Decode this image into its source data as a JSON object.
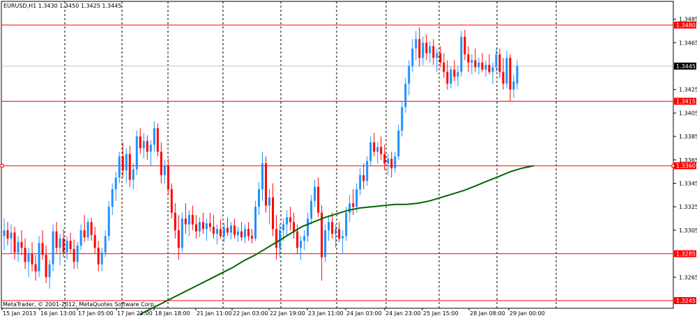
{
  "window": {
    "symbol_title": "EURUSD,H1  1.3430  1.3450  1.3425  1.3445",
    "copyright": "MetaTrader, © 2001-2012, MetaQuotes Software Corp."
  },
  "colors": {
    "background": "#ffffff",
    "bull_candle": "#1e90ff",
    "bear_candle": "#ff0000",
    "moving_average": "#006400",
    "level_line": "#ff0000",
    "current_price_line": "#c0c0c0",
    "grid": "#000000"
  },
  "price_axis": {
    "ticks": [
      "1.3485",
      "1.3465",
      "1.3425",
      "1.3405",
      "1.3385",
      "1.3365",
      "1.3345",
      "1.3325",
      "1.3305",
      "1.3265"
    ]
  },
  "time_axis": {
    "labels": [
      "15 Jan 2013",
      "16 Jan 13:00",
      "17 Jan 05:00",
      "17 Jan 21:00",
      "18 Jan 18:00",
      "21 Jan 11:00",
      "22 Jan 03:00",
      "22 Jan 19:00",
      "23 Jan 11:00",
      "24 Jan 03:00",
      "24 Jan 23:00",
      "25 Jan 15:00",
      "28 Jan 08:00",
      "29 Jan 00:00"
    ]
  },
  "levels": [
    {
      "price": 1.348,
      "label": "1.3480"
    },
    {
      "price": 1.3415,
      "label": "1.3415"
    },
    {
      "price": 1.336,
      "label": "1.3360"
    },
    {
      "price": 1.3285,
      "label": "1.3285"
    },
    {
      "price": 1.3245,
      "label": "1.3245"
    }
  ],
  "current_price": {
    "price": 1.3445,
    "label": "1.3445"
  },
  "chart_data": {
    "type": "candlestick",
    "symbol": "EURUSD",
    "timeframe": "H1",
    "ylim": [
      1.3245,
      1.3492
    ],
    "candles": [
      [
        1.33,
        1.3315,
        1.3288,
        1.3305
      ],
      [
        1.3305,
        1.3312,
        1.3292,
        1.3298
      ],
      [
        1.3298,
        1.331,
        1.3285,
        1.3303
      ],
      [
        1.3303,
        1.3308,
        1.328,
        1.3286
      ],
      [
        1.3286,
        1.33,
        1.3278,
        1.3295
      ],
      [
        1.3295,
        1.3305,
        1.3284,
        1.329
      ],
      [
        1.329,
        1.3298,
        1.3272,
        1.3278
      ],
      [
        1.3278,
        1.329,
        1.3265,
        1.3285
      ],
      [
        1.3285,
        1.3295,
        1.327,
        1.3276
      ],
      [
        1.3276,
        1.3284,
        1.3262,
        1.327
      ],
      [
        1.327,
        1.33,
        1.3265,
        1.3294
      ],
      [
        1.3294,
        1.3305,
        1.328,
        1.3284
      ],
      [
        1.3284,
        1.3292,
        1.326,
        1.3265
      ],
      [
        1.3265,
        1.328,
        1.3255,
        1.3276
      ],
      [
        1.3276,
        1.331,
        1.327,
        1.3304
      ],
      [
        1.3304,
        1.3312,
        1.3285,
        1.329
      ],
      [
        1.329,
        1.3302,
        1.3275,
        1.3298
      ],
      [
        1.3298,
        1.3306,
        1.3282,
        1.3286
      ],
      [
        1.3286,
        1.33,
        1.328,
        1.3296
      ],
      [
        1.3296,
        1.3303,
        1.3285,
        1.3289
      ],
      [
        1.3289,
        1.3297,
        1.3272,
        1.3278
      ],
      [
        1.3278,
        1.3295,
        1.3272,
        1.3292
      ],
      [
        1.3292,
        1.331,
        1.3288,
        1.3305
      ],
      [
        1.3305,
        1.3318,
        1.3295,
        1.3299
      ],
      [
        1.3299,
        1.3315,
        1.3296,
        1.3312
      ],
      [
        1.3312,
        1.3316,
        1.3296,
        1.3301
      ],
      [
        1.3301,
        1.3308,
        1.3285,
        1.329
      ],
      [
        1.329,
        1.3296,
        1.327,
        1.3276
      ],
      [
        1.3276,
        1.329,
        1.327,
        1.3286
      ],
      [
        1.3286,
        1.3305,
        1.3282,
        1.33
      ],
      [
        1.33,
        1.333,
        1.3296,
        1.3325
      ],
      [
        1.3325,
        1.3345,
        1.3318,
        1.334
      ],
      [
        1.334,
        1.3355,
        1.333,
        1.335
      ],
      [
        1.335,
        1.3372,
        1.3345,
        1.3368
      ],
      [
        1.3368,
        1.338,
        1.335,
        1.3356
      ],
      [
        1.3356,
        1.3375,
        1.3345,
        1.337
      ],
      [
        1.337,
        1.3377,
        1.3342,
        1.3348
      ],
      [
        1.3348,
        1.3362,
        1.334,
        1.3357
      ],
      [
        1.3357,
        1.339,
        1.3352,
        1.3385
      ],
      [
        1.3385,
        1.3392,
        1.337,
        1.3375
      ],
      [
        1.3375,
        1.3388,
        1.3366,
        1.3381
      ],
      [
        1.3381,
        1.3386,
        1.3365,
        1.3372
      ],
      [
        1.3372,
        1.3382,
        1.336,
        1.3378
      ],
      [
        1.3378,
        1.3398,
        1.3372,
        1.3392
      ],
      [
        1.3392,
        1.3396,
        1.3368,
        1.3372
      ],
      [
        1.3372,
        1.338,
        1.3345,
        1.3352
      ],
      [
        1.3352,
        1.3365,
        1.3345,
        1.336
      ],
      [
        1.336,
        1.3366,
        1.3335,
        1.334
      ],
      [
        1.334,
        1.3345,
        1.3315,
        1.332
      ],
      [
        1.332,
        1.3328,
        1.3298,
        1.3305
      ],
      [
        1.3305,
        1.3318,
        1.328,
        1.329
      ],
      [
        1.329,
        1.332,
        1.3286,
        1.3315
      ],
      [
        1.3315,
        1.3328,
        1.3302,
        1.331
      ],
      [
        1.331,
        1.3322,
        1.33,
        1.3318
      ],
      [
        1.3318,
        1.3326,
        1.3305,
        1.331
      ],
      [
        1.331,
        1.3318,
        1.3298,
        1.3304
      ],
      [
        1.3304,
        1.3316,
        1.3299,
        1.3312
      ],
      [
        1.3312,
        1.332,
        1.3302,
        1.3306
      ],
      [
        1.3306,
        1.3315,
        1.3296,
        1.3311
      ],
      [
        1.3311,
        1.332,
        1.3304,
        1.3308
      ],
      [
        1.3308,
        1.3318,
        1.3298,
        1.3302
      ],
      [
        1.3302,
        1.331,
        1.3293,
        1.3306
      ],
      [
        1.3306,
        1.3314,
        1.3298,
        1.33
      ],
      [
        1.33,
        1.3311,
        1.3295,
        1.3307
      ],
      [
        1.3307,
        1.3316,
        1.33,
        1.3303
      ],
      [
        1.3303,
        1.3312,
        1.3297,
        1.3309
      ],
      [
        1.3309,
        1.3315,
        1.3298,
        1.3301
      ],
      [
        1.3301,
        1.3308,
        1.3295,
        1.3304
      ],
      [
        1.3304,
        1.3312,
        1.3296,
        1.3299
      ],
      [
        1.3299,
        1.331,
        1.3294,
        1.3306
      ],
      [
        1.3306,
        1.3312,
        1.3296,
        1.33
      ],
      [
        1.33,
        1.3306,
        1.3294,
        1.3298
      ],
      [
        1.3298,
        1.333,
        1.3296,
        1.3325
      ],
      [
        1.3325,
        1.3346,
        1.3318,
        1.334
      ],
      [
        1.334,
        1.3372,
        1.333,
        1.3362
      ],
      [
        1.3362,
        1.3368,
        1.332,
        1.3326
      ],
      [
        1.3326,
        1.334,
        1.331,
        1.3333
      ],
      [
        1.3333,
        1.3345,
        1.33,
        1.3306
      ],
      [
        1.3306,
        1.3318,
        1.328,
        1.329
      ],
      [
        1.329,
        1.331,
        1.3282,
        1.3305
      ],
      [
        1.3305,
        1.3315,
        1.3296,
        1.331
      ],
      [
        1.331,
        1.3322,
        1.33,
        1.3316
      ],
      [
        1.3316,
        1.3325,
        1.3305,
        1.3312
      ],
      [
        1.3312,
        1.332,
        1.3298,
        1.3304
      ],
      [
        1.3304,
        1.331,
        1.3285,
        1.329
      ],
      [
        1.329,
        1.33,
        1.328,
        1.3296
      ],
      [
        1.3296,
        1.3305,
        1.3288,
        1.33
      ],
      [
        1.33,
        1.332,
        1.3295,
        1.3315
      ],
      [
        1.3315,
        1.3335,
        1.331,
        1.333
      ],
      [
        1.333,
        1.3348,
        1.3325,
        1.3342
      ],
      [
        1.3342,
        1.335,
        1.3316,
        1.332
      ],
      [
        1.332,
        1.3326,
        1.3262,
        1.3282
      ],
      [
        1.3282,
        1.331,
        1.3278,
        1.3305
      ],
      [
        1.3305,
        1.3318,
        1.3296,
        1.3312
      ],
      [
        1.3312,
        1.332,
        1.3298,
        1.3302
      ],
      [
        1.3302,
        1.331,
        1.329,
        1.3306
      ],
      [
        1.3306,
        1.3312,
        1.3295,
        1.3298
      ],
      [
        1.3298,
        1.3305,
        1.3285,
        1.33
      ],
      [
        1.33,
        1.3325,
        1.3296,
        1.332
      ],
      [
        1.332,
        1.3335,
        1.3312,
        1.3328
      ],
      [
        1.3328,
        1.334,
        1.3318,
        1.3325
      ],
      [
        1.3325,
        1.3345,
        1.332,
        1.334
      ],
      [
        1.334,
        1.3358,
        1.3335,
        1.3352
      ],
      [
        1.3352,
        1.3362,
        1.334,
        1.3347
      ],
      [
        1.3347,
        1.3368,
        1.3343,
        1.3364
      ],
      [
        1.3364,
        1.3385,
        1.336,
        1.338
      ],
      [
        1.338,
        1.3388,
        1.3368,
        1.3372
      ],
      [
        1.3372,
        1.338,
        1.3362,
        1.3376
      ],
      [
        1.3376,
        1.3385,
        1.3365,
        1.337
      ],
      [
        1.337,
        1.3378,
        1.3356,
        1.3362
      ],
      [
        1.3362,
        1.337,
        1.3352,
        1.3366
      ],
      [
        1.3366,
        1.3372,
        1.335,
        1.3358
      ],
      [
        1.3358,
        1.3372,
        1.3354,
        1.3368
      ],
      [
        1.3368,
        1.3395,
        1.3365,
        1.339
      ],
      [
        1.339,
        1.3415,
        1.3385,
        1.341
      ],
      [
        1.341,
        1.3435,
        1.3405,
        1.343
      ],
      [
        1.343,
        1.345,
        1.342,
        1.3445
      ],
      [
        1.3445,
        1.3468,
        1.344,
        1.346
      ],
      [
        1.346,
        1.3475,
        1.345,
        1.3468
      ],
      [
        1.3468,
        1.3478,
        1.3445,
        1.3452
      ],
      [
        1.3452,
        1.347,
        1.3446,
        1.3465
      ],
      [
        1.3465,
        1.3472,
        1.345,
        1.3456
      ],
      [
        1.3456,
        1.3466,
        1.3448,
        1.3462
      ],
      [
        1.3462,
        1.3468,
        1.3446,
        1.3452
      ],
      [
        1.3452,
        1.346,
        1.344,
        1.3456
      ],
      [
        1.3456,
        1.3462,
        1.3444,
        1.3448
      ],
      [
        1.3448,
        1.3456,
        1.3435,
        1.344
      ],
      [
        1.344,
        1.345,
        1.3425,
        1.343
      ],
      [
        1.343,
        1.3445,
        1.3426,
        1.3442
      ],
      [
        1.3442,
        1.345,
        1.3432,
        1.3436
      ],
      [
        1.3436,
        1.3445,
        1.3428,
        1.344
      ],
      [
        1.344,
        1.3475,
        1.3436,
        1.347
      ],
      [
        1.347,
        1.3476,
        1.345,
        1.3455
      ],
      [
        1.3455,
        1.3462,
        1.344,
        1.3448
      ],
      [
        1.3448,
        1.3455,
        1.3438,
        1.345
      ],
      [
        1.345,
        1.346,
        1.344,
        1.3444
      ],
      [
        1.3444,
        1.3452,
        1.3438,
        1.3448
      ],
      [
        1.3448,
        1.3456,
        1.344,
        1.3442
      ],
      [
        1.3442,
        1.345,
        1.3436,
        1.3446
      ],
      [
        1.3446,
        1.3455,
        1.3438,
        1.344
      ],
      [
        1.344,
        1.3448,
        1.343,
        1.3444
      ],
      [
        1.3444,
        1.346,
        1.344,
        1.3455
      ],
      [
        1.3455,
        1.346,
        1.3435,
        1.344
      ],
      [
        1.344,
        1.3452,
        1.3425,
        1.343
      ],
      [
        1.343,
        1.3458,
        1.3426,
        1.3452
      ],
      [
        1.3452,
        1.3455,
        1.3415,
        1.3425
      ],
      [
        1.3425,
        1.3438,
        1.3418,
        1.3432
      ],
      [
        1.343,
        1.345,
        1.3425,
        1.3445
      ]
    ],
    "moving_average": [
      [
        1.3233,
        1.3238,
        1.3243,
        1.3248,
        1.3253,
        1.3258,
        1.3263,
        1.3268,
        1.3273,
        1.3279,
        1.3284,
        1.329,
        1.3296,
        1.3302,
        1.3308,
        1.3312,
        1.3316,
        1.3319,
        1.3322,
        1.3324,
        1.3325,
        1.3326,
        1.3327,
        1.3327,
        1.3328,
        1.333,
        1.3333,
        1.3336,
        1.3339,
        1.3343,
        1.3347,
        1.3351,
        1.3355,
        1.3358,
        1.336
      ],
      "ma_values_listed_per_x_fraction"
    ]
  }
}
